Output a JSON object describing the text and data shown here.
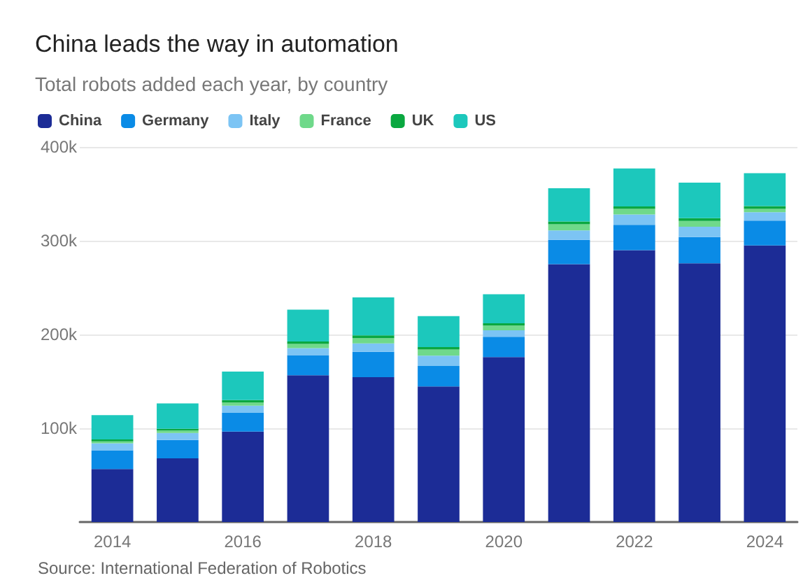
{
  "chart_data": {
    "type": "bar",
    "title": "China leads the way in automation",
    "subtitle": "Total robots added each year, by country",
    "categories": [
      "2014",
      null,
      "2016",
      null,
      "2018",
      null,
      "2020",
      null,
      "2022",
      null,
      "2024"
    ],
    "series": [
      {
        "name": "China",
        "color": "#1c2c96",
        "values": [
          56500,
          68000,
          96500,
          156500,
          154500,
          144500,
          176000,
          275000,
          290000,
          276000,
          295000
        ]
      },
      {
        "name": "Germany",
        "color": "#0a8be6",
        "values": [
          20000,
          19500,
          20000,
          21500,
          27000,
          22000,
          21500,
          26000,
          27000,
          28000,
          26500
        ]
      },
      {
        "name": "Italy",
        "color": "#7cc4f4",
        "values": [
          7500,
          7500,
          7500,
          7500,
          9000,
          11000,
          7000,
          10000,
          11000,
          11000,
          9000
        ]
      },
      {
        "name": "France",
        "color": "#6fd98a",
        "values": [
          2000,
          2500,
          3500,
          4500,
          5500,
          6500,
          5000,
          6500,
          6000,
          6000,
          3500
        ]
      },
      {
        "name": "UK",
        "color": "#0aa840",
        "values": [
          2000,
          2000,
          2500,
          2500,
          3000,
          2500,
          2500,
          3000,
          2500,
          3000,
          3000
        ]
      },
      {
        "name": "US",
        "color": "#1cc8bc",
        "values": [
          26000,
          27000,
          30500,
          34000,
          40500,
          33000,
          31000,
          35500,
          40500,
          38000,
          35000
        ]
      }
    ],
    "stacked": true,
    "ylim": [
      0,
      400000
    ],
    "yticks": [
      {
        "value": 100000,
        "label": "100k"
      },
      {
        "value": 200000,
        "label": "200k"
      },
      {
        "value": 300000,
        "label": "300k"
      },
      {
        "value": 400000,
        "label": "400k"
      }
    ],
    "grid": "y",
    "legend": "top left",
    "annotations": [
      "Source: International Federation of Robotics"
    ]
  }
}
